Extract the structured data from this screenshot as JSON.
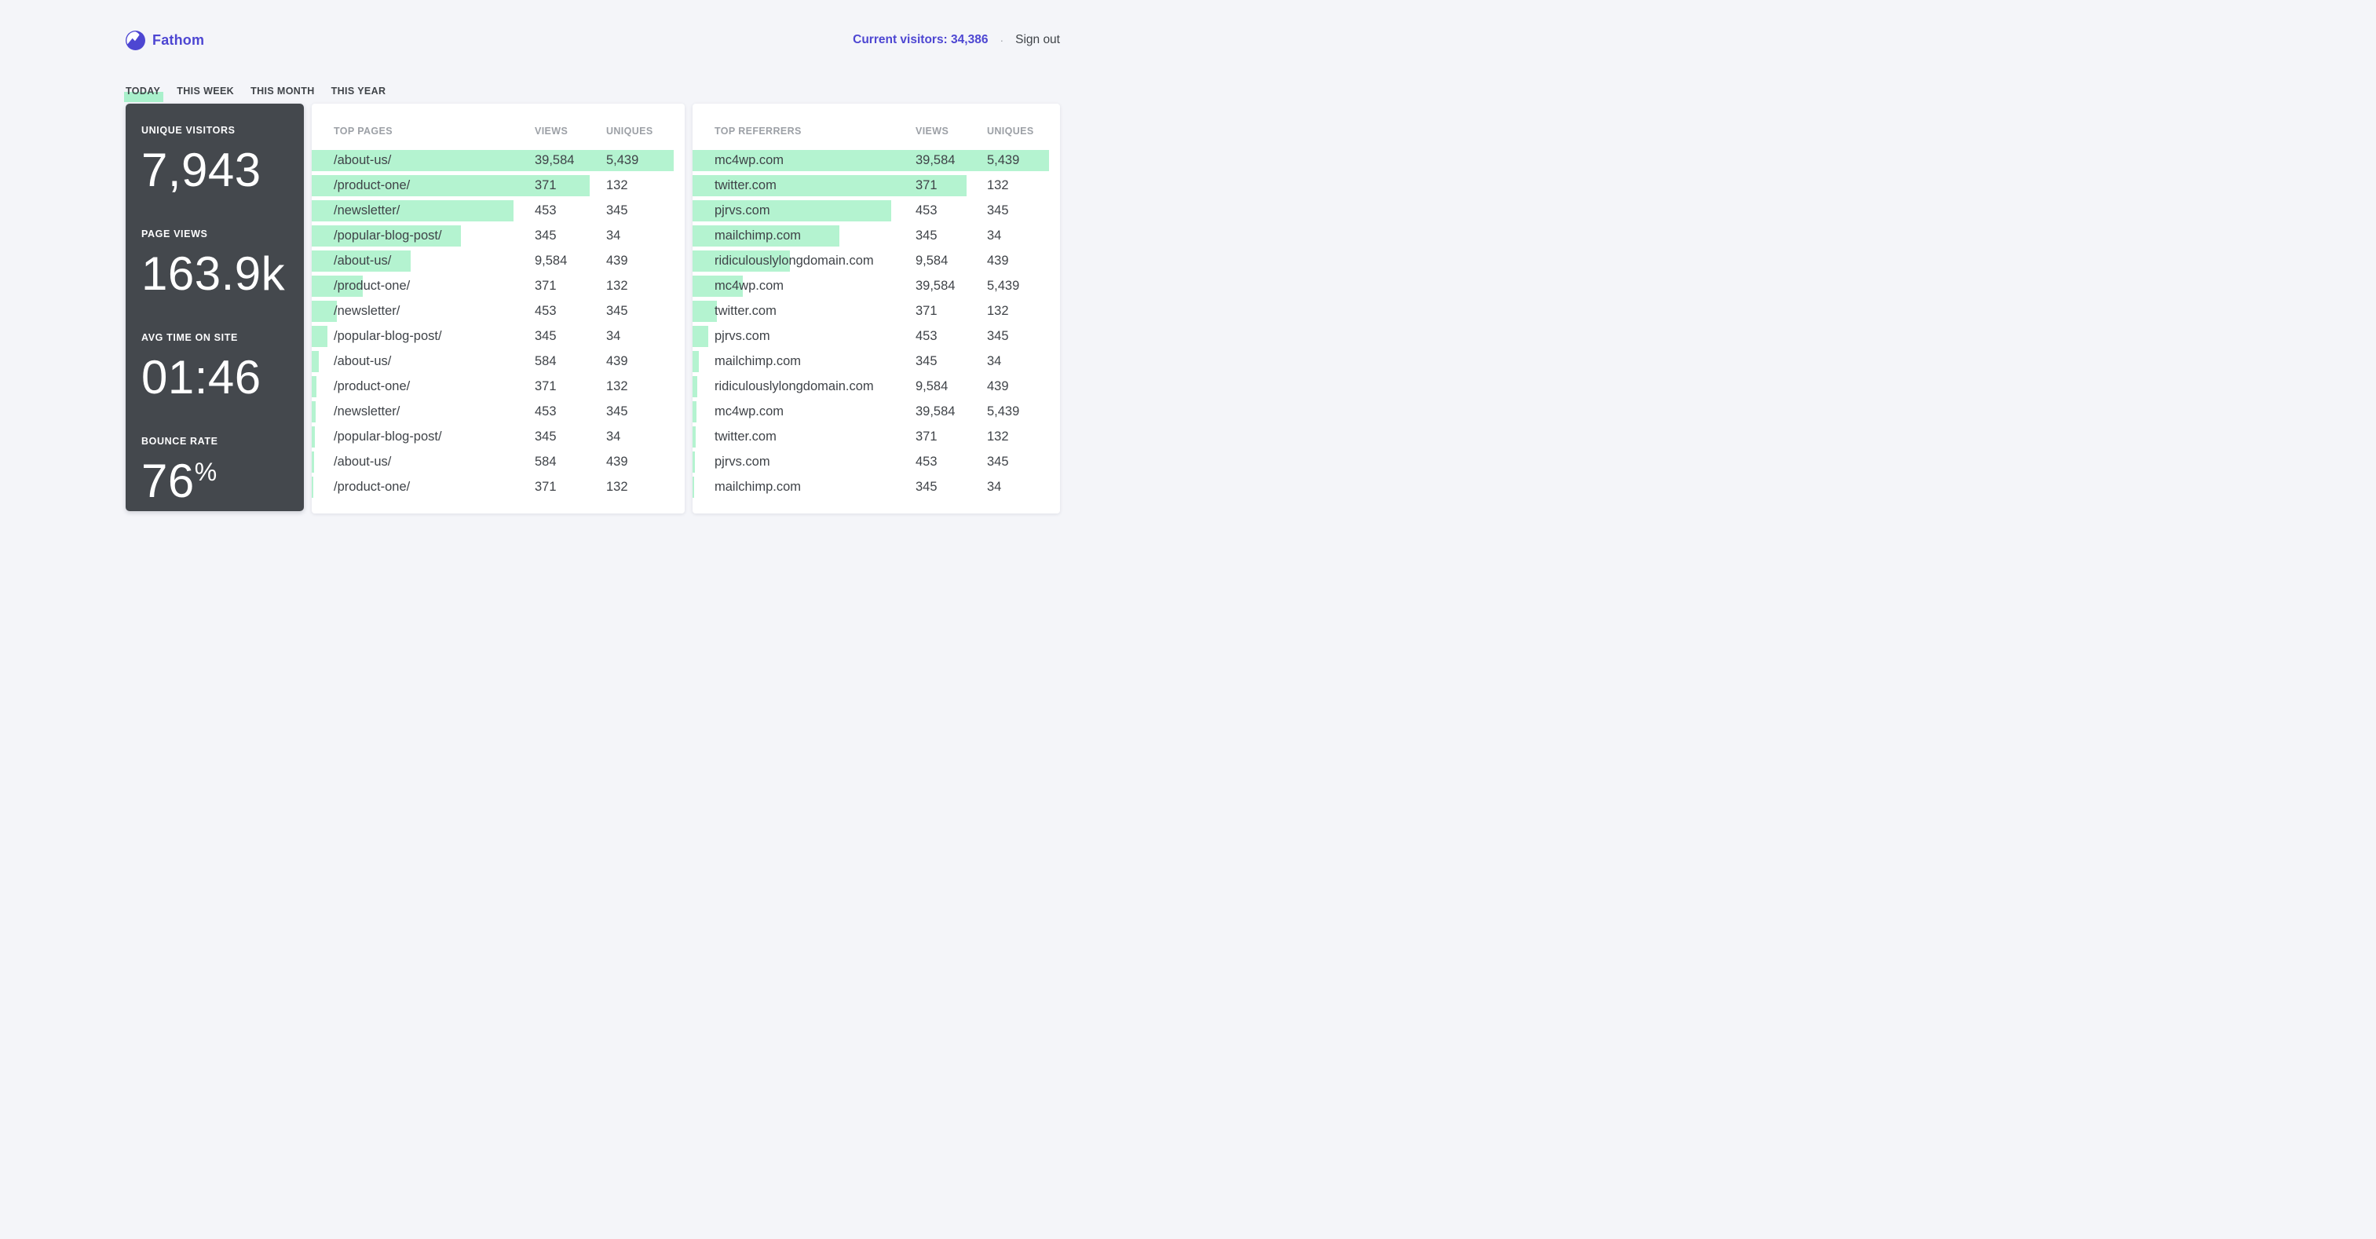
{
  "colors": {
    "accent_purple": "#4D46D2",
    "mint_green": "#B4F3D0",
    "dark_card": "#44484D",
    "page_background": "#F4F5F9",
    "text_dark": "#3F4348",
    "text_muted": "#9CA0A6"
  },
  "header": {
    "brand": "Fathom",
    "current_visitors": "Current visitors: 34,386",
    "separator": "·",
    "sign_out": "Sign out"
  },
  "tabs": [
    {
      "label": "TODAY",
      "active": true
    },
    {
      "label": "THIS WEEK",
      "active": false
    },
    {
      "label": "THIS MONTH",
      "active": false
    },
    {
      "label": "THIS YEAR",
      "active": false
    }
  ],
  "stats": [
    {
      "label": "UNIQUE VISITORS",
      "value": "7,943"
    },
    {
      "label": "PAGE VIEWS",
      "value": "163.9k"
    },
    {
      "label": "AVG TIME ON SITE",
      "value": "01:46"
    },
    {
      "label": "BOUNCE RATE",
      "value": "76",
      "suffix": "%"
    }
  ],
  "top_pages": {
    "headers": [
      "TOP PAGES",
      "VIEWS",
      "UNIQUES"
    ],
    "rows": [
      {
        "name": "/about-us/",
        "views": "39,584",
        "uniques": "5,439",
        "bar_pct": 97
      },
      {
        "name": "/product-one/",
        "views": "371",
        "uniques": "132",
        "bar_pct": 74.5
      },
      {
        "name": "/newsletter/",
        "views": "453",
        "uniques": "345",
        "bar_pct": 54
      },
      {
        "name": "/popular-blog-post/",
        "views": "345",
        "uniques": "34",
        "bar_pct": 40
      },
      {
        "name": "/about-us/",
        "views": "9,584",
        "uniques": "439",
        "bar_pct": 26.5
      },
      {
        "name": "/product-one/",
        "views": "371",
        "uniques": "132",
        "bar_pct": 13.7
      },
      {
        "name": "/newsletter/",
        "views": "453",
        "uniques": "345",
        "bar_pct": 6.7
      },
      {
        "name": "/popular-blog-post/",
        "views": "345",
        "uniques": "34",
        "bar_pct": 4.3
      },
      {
        "name": "/about-us/",
        "views": "584",
        "uniques": "439",
        "bar_pct": 1.8
      },
      {
        "name": "/product-one/",
        "views": "371",
        "uniques": "132",
        "bar_pct": 1.3
      },
      {
        "name": "/newsletter/",
        "views": "453",
        "uniques": "345",
        "bar_pct": 1.0
      },
      {
        "name": "/popular-blog-post/",
        "views": "345",
        "uniques": "34",
        "bar_pct": 0.8
      },
      {
        "name": "/about-us/",
        "views": "584",
        "uniques": "439",
        "bar_pct": 0.6
      },
      {
        "name": "/product-one/",
        "views": "371",
        "uniques": "132",
        "bar_pct": 0.4
      }
    ]
  },
  "top_referrers": {
    "headers": [
      "TOP REFERRERS",
      "VIEWS",
      "UNIQUES"
    ],
    "rows": [
      {
        "name": "mc4wp.com",
        "views": "39,584",
        "uniques": "5,439",
        "bar_pct": 97
      },
      {
        "name": "twitter.com",
        "views": "371",
        "uniques": "132",
        "bar_pct": 74.5
      },
      {
        "name": "pjrvs.com",
        "views": "453",
        "uniques": "345",
        "bar_pct": 54
      },
      {
        "name": "mailchimp.com",
        "views": "345",
        "uniques": "34",
        "bar_pct": 40
      },
      {
        "name": "ridiculouslylongdomain.com",
        "views": "9,584",
        "uniques": "439",
        "bar_pct": 26.5
      },
      {
        "name": "mc4wp.com",
        "views": "39,584",
        "uniques": "5,439",
        "bar_pct": 13.7
      },
      {
        "name": "twitter.com",
        "views": "371",
        "uniques": "132",
        "bar_pct": 6.7
      },
      {
        "name": "pjrvs.com",
        "views": "453",
        "uniques": "345",
        "bar_pct": 4.3
      },
      {
        "name": "mailchimp.com",
        "views": "345",
        "uniques": "34",
        "bar_pct": 1.8
      },
      {
        "name": "ridiculouslylongdomain.com",
        "views": "9,584",
        "uniques": "439",
        "bar_pct": 1.3
      },
      {
        "name": "mc4wp.com",
        "views": "39,584",
        "uniques": "5,439",
        "bar_pct": 1.0
      },
      {
        "name": "twitter.com",
        "views": "371",
        "uniques": "132",
        "bar_pct": 0.8
      },
      {
        "name": "pjrvs.com",
        "views": "453",
        "uniques": "345",
        "bar_pct": 0.6
      },
      {
        "name": "mailchimp.com",
        "views": "345",
        "uniques": "34",
        "bar_pct": 0.4
      }
    ]
  }
}
